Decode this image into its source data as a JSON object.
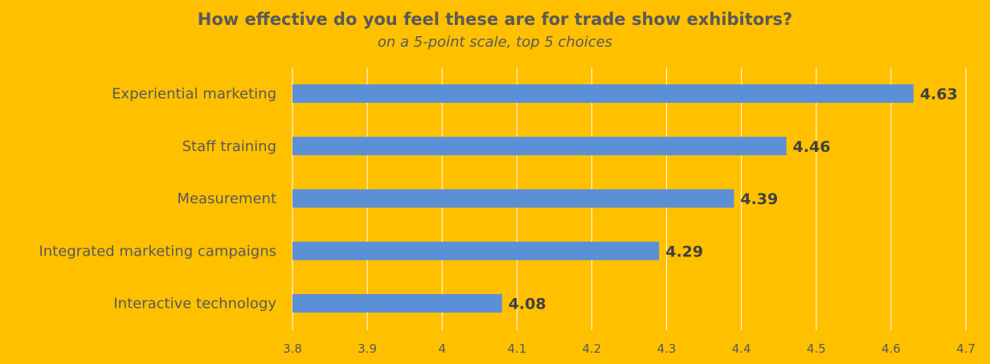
{
  "chart_data": {
    "type": "bar",
    "orientation": "horizontal",
    "title": "How effective do you feel these are for trade show exhibitors?",
    "subtitle": "on a 5-point scale, top 5 choices",
    "categories": [
      "Experiential marketing",
      "Staff training",
      "Measurement",
      "Integrated marketing campaigns",
      "Interactive technology"
    ],
    "values": [
      4.63,
      4.46,
      4.39,
      4.29,
      4.08
    ],
    "value_labels": [
      "4.63",
      "4.46",
      "4.39",
      "4.29",
      "4.08"
    ],
    "xlim": [
      3.8,
      4.7
    ],
    "xticks": [
      "3.8",
      "3.9",
      "4",
      "4.1",
      "4.2",
      "4.3",
      "4.4",
      "4.5",
      "4.6",
      "4.7"
    ],
    "grid": true,
    "legend": "none",
    "colors": {
      "background": "#FFC000",
      "bar": "#5B8FD6",
      "gridline": "#FFFFFF",
      "text": "#595959",
      "value_text": "#404040"
    }
  }
}
